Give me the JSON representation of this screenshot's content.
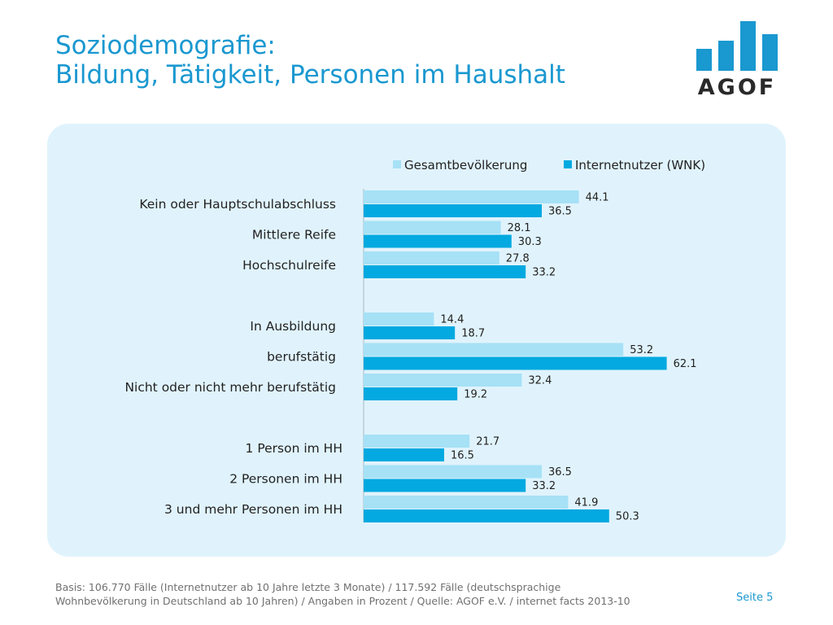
{
  "header": {
    "title_line1": "Soziodemografie:",
    "title_line2": "Bildung, Tätigkeit, Personen im Haushalt"
  },
  "logo": {
    "text": "AGOF",
    "color": "#1a98d0"
  },
  "colors": {
    "series_light": "#a6e1f6",
    "series_dark": "#03a9e0",
    "panel": "#e0f3fc"
  },
  "chart_data": {
    "type": "bar",
    "orientation": "horizontal",
    "categories": [
      "Kein oder Hauptschulabschluss",
      "Mittlere Reife",
      "Hochschulreife",
      "In Ausbildung",
      "berufstätig",
      "Nicht oder nicht mehr berufstätig",
      "1 Person im HH",
      "2 Personen im HH",
      "3 und mehr Personen im HH"
    ],
    "groups": [
      [
        0,
        1,
        2
      ],
      [
        3,
        4,
        5
      ],
      [
        6,
        7,
        8
      ]
    ],
    "series": [
      {
        "name": "Gesamtbevölkerung",
        "values": [
          44.1,
          28.1,
          27.8,
          14.4,
          53.2,
          32.4,
          21.7,
          36.5,
          41.9
        ]
      },
      {
        "name": "Internetnutzer (WNK)",
        "values": [
          36.5,
          30.3,
          33.2,
          18.7,
          62.1,
          19.2,
          16.5,
          33.2,
          50.3
        ]
      }
    ],
    "legend_position": "top-right",
    "grid": false,
    "xlim": [
      0,
      100
    ]
  },
  "footer": {
    "note_line1": "Basis: 106.770 Fälle (Internetnutzer ab 10 Jahre letzte 3 Monate) / 117.592 Fälle (deutschsprachige",
    "note_line2": "Wohnbevölkerung in Deutschland ab 10 Jahren) / Angaben in Prozent / Quelle: AGOF e.V. / internet facts 2013-10",
    "page": "Seite 5"
  }
}
